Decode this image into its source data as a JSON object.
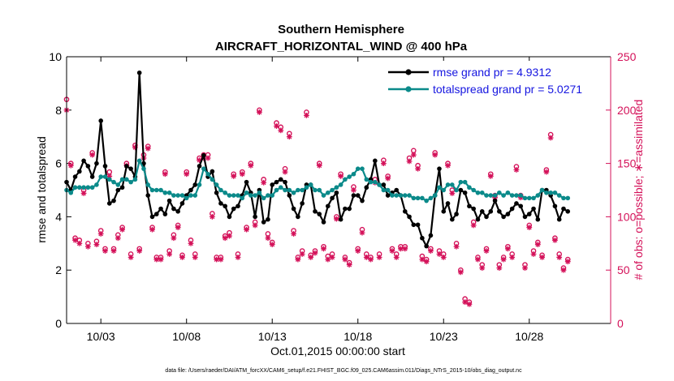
{
  "chart_data": {
    "type": "line",
    "title": "Southern Hemisphere",
    "subtitle": "AIRCRAFT_HORIZONTAL_WIND @ 400 hPa",
    "xlabel": "Oct.01,2015 00:00:00 start",
    "ylabel_left": "rmse and totalspread",
    "ylabel_right": "# of obs: o=possible; ∗=assimilated",
    "xlim": [
      1,
      32.75
    ],
    "ylim_left": [
      0,
      10
    ],
    "ylim_right": [
      0,
      250
    ],
    "x_ticks": [
      3,
      8,
      13,
      18,
      23,
      28
    ],
    "x_tick_labels": [
      "10/03",
      "10/08",
      "10/13",
      "10/18",
      "10/23",
      "10/28"
    ],
    "y_ticks_left": [
      0,
      2,
      4,
      6,
      8,
      10
    ],
    "y_tick_labels_left": [
      "0",
      "2",
      "4",
      "6",
      "8",
      "10"
    ],
    "y_ticks_right": [
      0,
      50,
      100,
      150,
      200,
      250
    ],
    "y_tick_labels_right": [
      "0",
      "50",
      "100",
      "150",
      "200",
      "250"
    ],
    "x_start": 1.0,
    "x_step": 0.25,
    "series": [
      {
        "name": "rmse grand pr = 4.9312",
        "axis": "left",
        "color": "#000000",
        "values": [
          5.3,
          5.0,
          5.5,
          5.7,
          6.1,
          5.9,
          5.5,
          6.0,
          7.6,
          5.9,
          4.5,
          4.6,
          5.0,
          5.1,
          5.9,
          5.8,
          5.5,
          9.4,
          6.0,
          4.8,
          4.0,
          4.1,
          4.3,
          4.1,
          4.6,
          4.3,
          4.2,
          4.5,
          4.8,
          5.0,
          5.2,
          5.9,
          6.3,
          5.5,
          5.7,
          4.9,
          4.5,
          4.4,
          4.0,
          4.3,
          4.4,
          4.8,
          5.3,
          4.9,
          4.0,
          5.0,
          3.8,
          3.9,
          5.2,
          5.3,
          5.4,
          5.3,
          4.8,
          4.3,
          4.0,
          4.5,
          5.2,
          5.2,
          4.2,
          4.1,
          3.8,
          4.4,
          4.7,
          4.9,
          3.9,
          4.3,
          4.3,
          4.8,
          4.8,
          4.6,
          5.1,
          5.4,
          6.1,
          5.2,
          5.2,
          4.8,
          4.9,
          5.0,
          4.8,
          4.2,
          4.0,
          3.7,
          3.7,
          3.2,
          2.9,
          3.3,
          4.8,
          5.8,
          4.2,
          4.5,
          3.9,
          4.1,
          5.0,
          4.9,
          4.4,
          4.3,
          3.9,
          4.2,
          4.0,
          4.2,
          4.6,
          4.2,
          4.0,
          4.1,
          4.3,
          4.5,
          4.4,
          4.0,
          4.1,
          4.3,
          3.9,
          5.0,
          5.0,
          4.8,
          4.4,
          3.9,
          4.3,
          4.2
        ]
      },
      {
        "name": "totalspread grand pr = 5.0271",
        "axis": "left",
        "color": "#0b8a8a",
        "values": [
          5.0,
          4.9,
          5.1,
          5.1,
          5.1,
          5.1,
          5.1,
          5.2,
          5.5,
          5.5,
          5.4,
          5.3,
          5.2,
          5.4,
          5.4,
          5.3,
          5.4,
          6.1,
          5.8,
          5.2,
          5.0,
          5.0,
          5.0,
          4.9,
          4.9,
          4.8,
          4.8,
          4.8,
          4.7,
          4.8,
          4.8,
          5.2,
          5.8,
          5.6,
          5.4,
          5.2,
          5.0,
          4.9,
          4.8,
          4.8,
          4.8,
          4.7,
          4.9,
          4.8,
          4.8,
          4.9,
          4.7,
          4.8,
          4.8,
          5.0,
          5.1,
          5.0,
          5.0,
          4.9,
          5.0,
          5.0,
          5.1,
          5.2,
          5.0,
          5.0,
          4.8,
          4.9,
          5.0,
          5.1,
          5.2,
          5.4,
          5.5,
          5.6,
          5.8,
          5.8,
          5.4,
          5.3,
          5.3,
          5.2,
          5.0,
          5.0,
          4.8,
          4.8,
          4.8,
          4.8,
          4.8,
          4.7,
          4.7,
          4.7,
          4.6,
          4.7,
          4.8,
          5.1,
          5.0,
          5.2,
          5.2,
          5.0,
          5.3,
          5.3,
          5.1,
          5.0,
          4.9,
          4.9,
          4.8,
          4.8,
          4.8,
          4.9,
          4.8,
          4.9,
          4.8,
          4.8,
          4.8,
          4.7,
          4.7,
          4.7,
          4.8,
          5.0,
          4.9,
          4.9,
          4.9,
          4.8,
          4.7,
          4.7
        ]
      },
      {
        "name": "possible",
        "axis": "right",
        "marker": "o",
        "color": "#d41159",
        "values": [
          210,
          150,
          80,
          78,
          125,
          75,
          160,
          77,
          87,
          70,
          142,
          70,
          83,
          90,
          150,
          65,
          167,
          70,
          158,
          166,
          90,
          62,
          62,
          142,
          68,
          83,
          92,
          64,
          142,
          78,
          65,
          155,
          158,
          158,
          103,
          62,
          62,
          82,
          85,
          140,
          65,
          142,
          90,
          150,
          95,
          200,
          135,
          84,
          76,
          188,
          184,
          145,
          178,
          87,
          62,
          68,
          198,
          64,
          68,
          150,
          72,
          63,
          65,
          100,
          140,
          62,
          57,
          128,
          70,
          88,
          65,
          62,
          135,
          65,
          153,
          138,
          70,
          65,
          72,
          72,
          155,
          162,
          148,
          63,
          60,
          70,
          160,
          68,
          65,
          150,
          125,
          75,
          50,
          23,
          20,
          95,
          62,
          55,
          70,
          140,
          120,
          55,
          62,
          72,
          65,
          147,
          120,
          55,
          92,
          68,
          76,
          64,
          144,
          177,
          80,
          65,
          52,
          60
        ]
      },
      {
        "name": "assimilated",
        "axis": "right",
        "marker": "*",
        "color": "#d41159",
        "values": [
          200,
          148,
          78,
          75,
          122,
          72,
          158,
          74,
          84,
          68,
          138,
          68,
          80,
          88,
          148,
          62,
          165,
          68,
          155,
          164,
          88,
          60,
          60,
          140,
          65,
          80,
          90,
          62,
          140,
          75,
          62,
          153,
          155,
          155,
          100,
          60,
          60,
          80,
          82,
          138,
          62,
          140,
          88,
          148,
          92,
          198,
          132,
          80,
          74,
          185,
          181,
          142,
          175,
          84,
          60,
          65,
          195,
          62,
          66,
          148,
          70,
          60,
          62,
          98,
          138,
          60,
          55,
          125,
          68,
          85,
          62,
          60,
          132,
          62,
          150,
          136,
          68,
          62,
          70,
          70,
          152,
          158,
          145,
          60,
          58,
          68,
          158,
          65,
          62,
          148,
          122,
          72,
          48,
          20,
          18,
          92,
          60,
          52,
          68,
          138,
          118,
          52,
          60,
          70,
          62,
          144,
          118,
          52,
          90,
          65,
          74,
          62,
          142,
          174,
          78,
          62,
          50,
          58
        ]
      }
    ]
  },
  "footnote": "data file: /Users/raeder/DAI/ATM_forcXX/CAM6_setup/f.e21.FHIST_BGC.f09_025.CAM6assim.011/Diags_NTrS_2015-10/obs_diag_output.nc"
}
